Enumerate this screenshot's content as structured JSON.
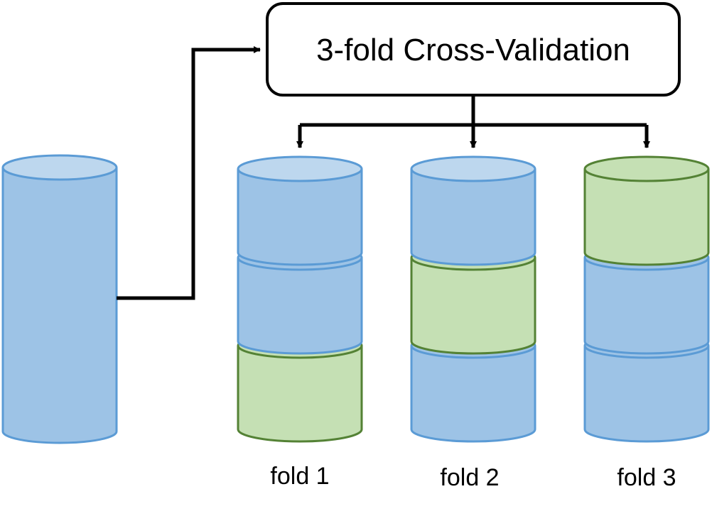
{
  "title": "3-fold Cross-Validation",
  "folds": [
    {
      "label": "fold 1",
      "segments": [
        "train",
        "train",
        "validation"
      ]
    },
    {
      "label": "fold 2",
      "segments": [
        "train",
        "validation",
        "train"
      ]
    },
    {
      "label": "fold 3",
      "segments": [
        "validation",
        "train",
        "train"
      ]
    }
  ],
  "colors": {
    "train_fill": "#9DC3E6",
    "train_top": "#BDD7EE",
    "train_stroke": "#5B9BD5",
    "validation_fill": "#C5E0B4",
    "validation_stroke": "#548235",
    "line": "#000000"
  }
}
